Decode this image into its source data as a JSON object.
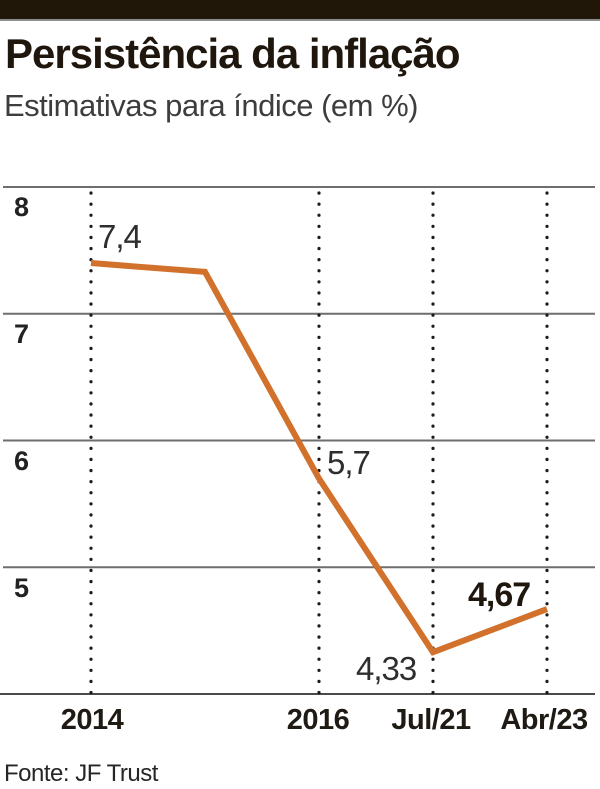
{
  "header": {
    "title": "Persistência da inflação",
    "subtitle": "Estimativas para índice (em %)"
  },
  "footer": {
    "source": "Fonte: JF Trust"
  },
  "colors": {
    "topbar": "#211709",
    "line": "#d2712c",
    "grid": "#6e6e6e",
    "axis": "#4a4a4a",
    "dotted": "#1c1c1c"
  },
  "chart_data": {
    "type": "line",
    "title": "Persistência da inflação",
    "subtitle": "Estimativas para índice (em %)",
    "x_units": [
      0,
      1,
      2,
      3,
      4
    ],
    "x_unit_names": [
      "2014",
      "2015 (unlabeled vertex)",
      "2016",
      "Jul/21",
      "Abr/23"
    ],
    "series": [
      {
        "name": "Estimativa para índice (%)",
        "values": [
          7.4,
          7.33,
          5.7,
          4.33,
          4.67
        ]
      }
    ],
    "x_tick_units": [
      0,
      2,
      3,
      4
    ],
    "x_tick_labels": [
      "2014",
      "2016",
      "Jul/21",
      "Abr/23"
    ],
    "y_ticks": [
      "8",
      "7",
      "6",
      "5"
    ],
    "y_tick_values": [
      8,
      7,
      6,
      5
    ],
    "ylim": [
      4,
      8
    ],
    "grid": "horizontal solid gray lines at each y tick; vertical black dotted lines at labeled x ticks; solid bottom axis",
    "legend": "none",
    "point_labels": [
      {
        "text": "7,4",
        "unit": 0,
        "value": 7.4,
        "bold": false
      },
      {
        "text": "5,7",
        "unit": 2,
        "value": 5.7,
        "bold": false
      },
      {
        "text": "4,33",
        "unit": 3,
        "value": 4.33,
        "bold": false
      },
      {
        "text": "4,67",
        "unit": 4,
        "value": 4.67,
        "bold": true
      }
    ],
    "source": "Fonte: JF Trust"
  }
}
